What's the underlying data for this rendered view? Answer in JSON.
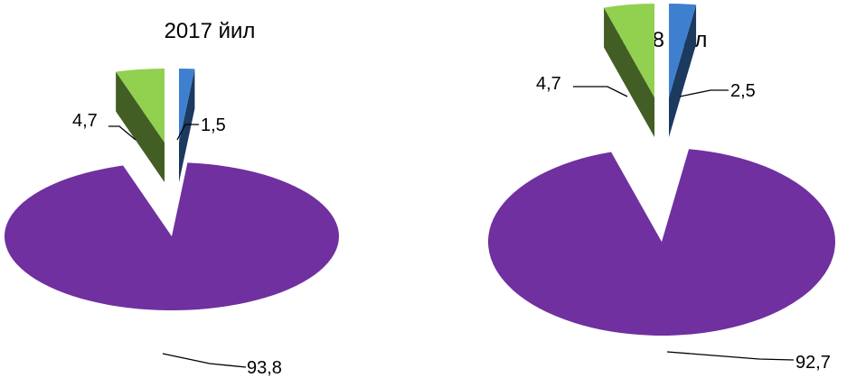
{
  "chart_data": [
    {
      "type": "pie",
      "title": "2017 йил",
      "slices": [
        {
          "value": 93.8,
          "label": "93,8",
          "color": "#7030A0"
        },
        {
          "value": 4.7,
          "label": "4,7",
          "color": "#92D050"
        },
        {
          "value": 1.5,
          "label": "1,5",
          "color": "#3E7FD0"
        }
      ],
      "legend": "none",
      "style": "3d-exploded"
    },
    {
      "type": "pie",
      "title": "2018 йил",
      "slices": [
        {
          "value": 92.7,
          "label": "92,7",
          "color": "#7030A0"
        },
        {
          "value": 4.7,
          "label": "4,7",
          "color": "#92D050"
        },
        {
          "value": 2.5,
          "label": "2,5",
          "color": "#3E7FD0"
        }
      ],
      "legend": "none",
      "style": "3d-exploded"
    }
  ]
}
